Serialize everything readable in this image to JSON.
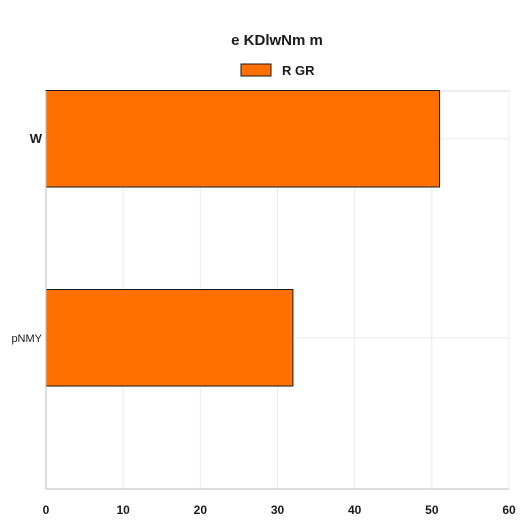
{
  "chart_data": {
    "type": "bar",
    "orientation": "horizontal",
    "title": "e KDlwNm m",
    "xlabel": "",
    "ylabel": "",
    "categories": [
      "W",
      "pNMY"
    ],
    "series": [
      {
        "name": "R GR",
        "values": [
          51,
          32
        ],
        "color": "#ff7000"
      }
    ],
    "xlim": [
      0,
      60
    ],
    "xticks": [
      0,
      10,
      20,
      30,
      40,
      50,
      60
    ],
    "grid": true,
    "legend": "top-center"
  }
}
